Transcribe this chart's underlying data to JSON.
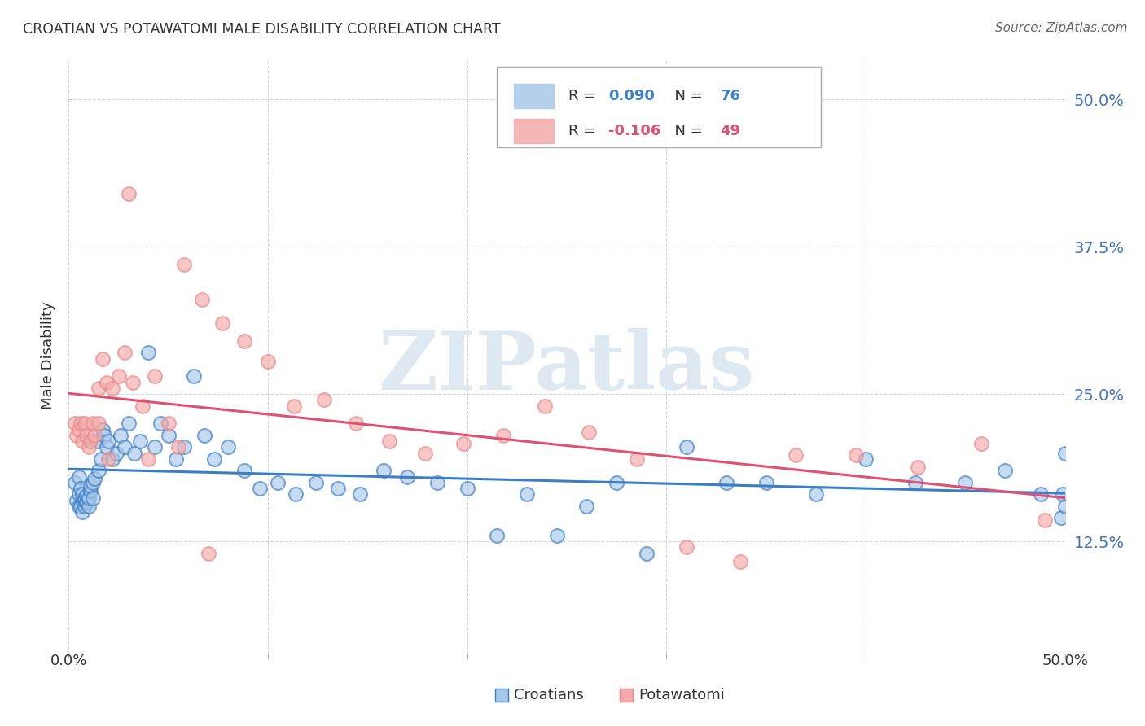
{
  "title": "CROATIAN VS POTAWATOMI MALE DISABILITY CORRELATION CHART",
  "source": "Source: ZipAtlas.com",
  "ylabel": "Male Disability",
  "ytick_labels": [
    "12.5%",
    "25.0%",
    "37.5%",
    "50.0%"
  ],
  "ytick_values": [
    0.125,
    0.25,
    0.375,
    0.5
  ],
  "xlim": [
    0.0,
    0.5
  ],
  "ylim": [
    0.03,
    0.535
  ],
  "croatian_color": "#a8c8e8",
  "potawatomi_color": "#f4aaaa",
  "croatian_edge_color": "#7aaed0",
  "potawatomi_edge_color": "#e88888",
  "croatian_line_color": "#3a7ec8",
  "potawatomi_line_color": "#e05070",
  "R_croatian": "0.090",
  "N_croatian": "76",
  "R_potawatomi": "-0.106",
  "N_potawatomi": "49",
  "croatian_x": [
    0.003,
    0.004,
    0.005,
    0.005,
    0.005,
    0.006,
    0.006,
    0.007,
    0.007,
    0.007,
    0.008,
    0.008,
    0.008,
    0.009,
    0.009,
    0.01,
    0.01,
    0.011,
    0.011,
    0.012,
    0.012,
    0.013,
    0.014,
    0.015,
    0.016,
    0.017,
    0.018,
    0.019,
    0.02,
    0.022,
    0.024,
    0.026,
    0.028,
    0.03,
    0.033,
    0.036,
    0.04,
    0.043,
    0.046,
    0.05,
    0.054,
    0.058,
    0.063,
    0.068,
    0.073,
    0.08,
    0.088,
    0.096,
    0.105,
    0.114,
    0.124,
    0.135,
    0.146,
    0.158,
    0.17,
    0.185,
    0.2,
    0.215,
    0.23,
    0.245,
    0.26,
    0.275,
    0.29,
    0.31,
    0.33,
    0.35,
    0.375,
    0.4,
    0.425,
    0.45,
    0.47,
    0.488,
    0.498,
    0.499,
    0.5,
    0.5
  ],
  "croatian_y": [
    0.175,
    0.16,
    0.18,
    0.155,
    0.165,
    0.17,
    0.155,
    0.16,
    0.165,
    0.15,
    0.155,
    0.16,
    0.162,
    0.158,
    0.164,
    0.155,
    0.162,
    0.168,
    0.172,
    0.175,
    0.162,
    0.178,
    0.21,
    0.185,
    0.195,
    0.22,
    0.215,
    0.205,
    0.21,
    0.195,
    0.2,
    0.215,
    0.205,
    0.225,
    0.2,
    0.21,
    0.285,
    0.205,
    0.225,
    0.215,
    0.195,
    0.205,
    0.265,
    0.215,
    0.195,
    0.205,
    0.185,
    0.17,
    0.175,
    0.165,
    0.175,
    0.17,
    0.165,
    0.185,
    0.18,
    0.175,
    0.17,
    0.13,
    0.165,
    0.13,
    0.155,
    0.175,
    0.115,
    0.205,
    0.175,
    0.175,
    0.165,
    0.195,
    0.175,
    0.175,
    0.185,
    0.165,
    0.145,
    0.165,
    0.155,
    0.2
  ],
  "potawatomi_x": [
    0.003,
    0.004,
    0.005,
    0.006,
    0.007,
    0.008,
    0.009,
    0.01,
    0.011,
    0.012,
    0.013,
    0.015,
    0.017,
    0.019,
    0.022,
    0.025,
    0.028,
    0.032,
    0.037,
    0.043,
    0.05,
    0.058,
    0.067,
    0.077,
    0.088,
    0.1,
    0.113,
    0.128,
    0.144,
    0.161,
    0.179,
    0.198,
    0.218,
    0.239,
    0.261,
    0.285,
    0.31,
    0.337,
    0.365,
    0.395,
    0.426,
    0.458,
    0.49,
    0.015,
    0.02,
    0.03,
    0.04,
    0.055,
    0.07
  ],
  "potawatomi_y": [
    0.225,
    0.215,
    0.22,
    0.225,
    0.21,
    0.225,
    0.215,
    0.205,
    0.21,
    0.225,
    0.215,
    0.255,
    0.28,
    0.26,
    0.255,
    0.265,
    0.285,
    0.26,
    0.24,
    0.265,
    0.225,
    0.36,
    0.33,
    0.31,
    0.295,
    0.278,
    0.24,
    0.245,
    0.225,
    0.21,
    0.2,
    0.208,
    0.215,
    0.24,
    0.218,
    0.195,
    0.12,
    0.108,
    0.198,
    0.198,
    0.188,
    0.208,
    0.143,
    0.225,
    0.195,
    0.42,
    0.195,
    0.205,
    0.115
  ],
  "background_color": "#ffffff",
  "grid_color": "#cccccc",
  "watermark_text": "ZIPatlas",
  "watermark_color": "#dde8f0"
}
